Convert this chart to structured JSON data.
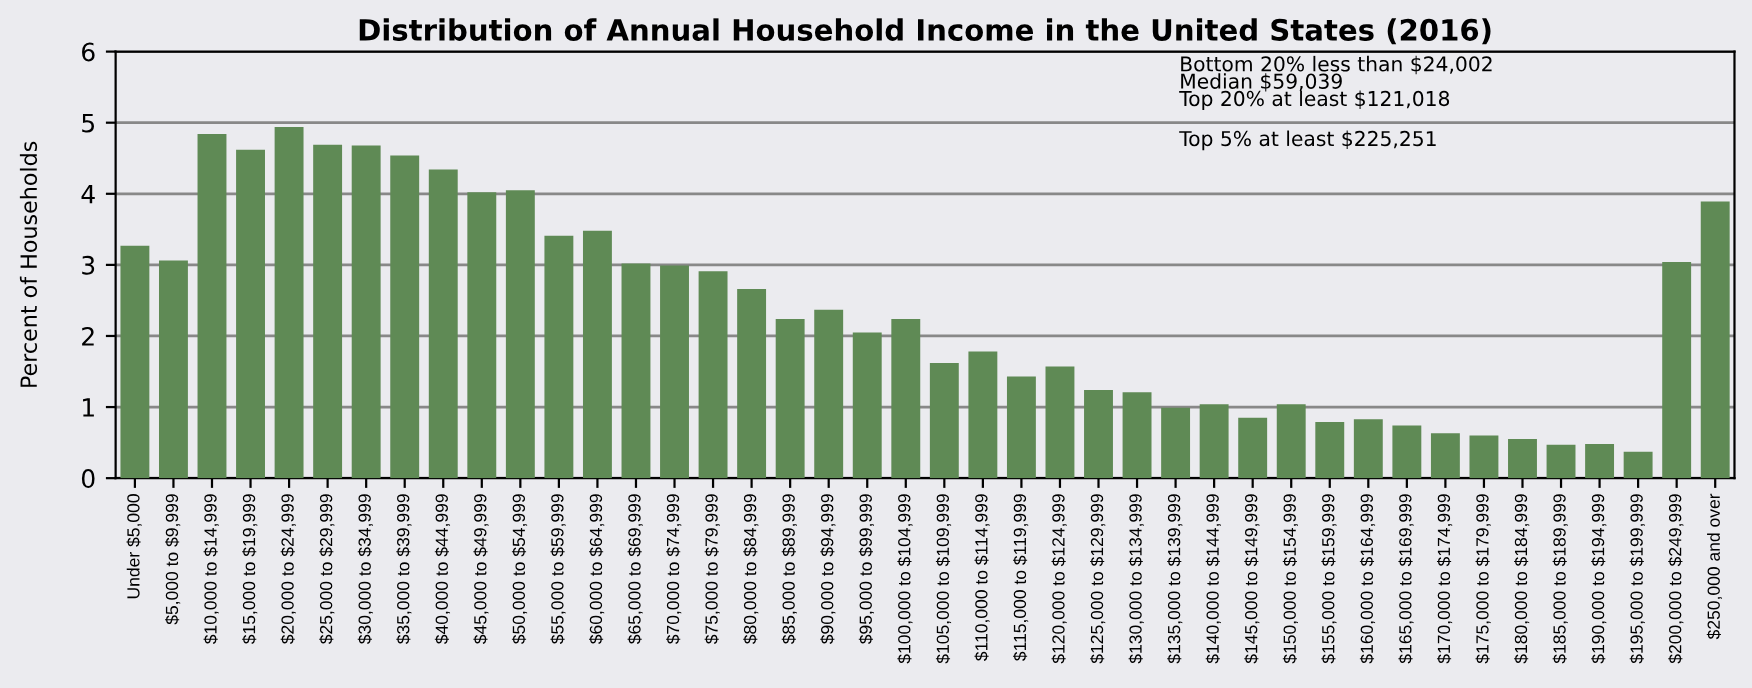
{
  "chart_data": {
    "type": "bar",
    "title": "Distribution of Annual Household Income in the United States (2016)",
    "ylabel": "Percent of Households",
    "categories": [
      "Under $5,000",
      "$5,000 to $9,999",
      "$10,000 to $14,999",
      "$15,000 to $19,999",
      "$20,000 to $24,999",
      "$25,000 to $29,999",
      "$30,000 to $34,999",
      "$35,000 to $39,999",
      "$40,000 to $44,999",
      "$45,000 to $49,999",
      "$50,000 to $54,999",
      "$55,000 to $59,999",
      "$60,000 to $64,999",
      "$65,000 to $69,999",
      "$70,000 to $74,999",
      "$75,000 to $79,999",
      "$80,000 to $84,999",
      "$85,000 to $89,999",
      "$90,000 to $94,999",
      "$95,000 to $99,999",
      "$100,000 to $104,999",
      "$105,000 to $109,999",
      "$110,000 to $114,999",
      "$115,000 to $119,999",
      "$120,000 to $124,999",
      "$125,000 to $129,999",
      "$130,000 to $134,999",
      "$135,000 to $139,999",
      "$140,000 to $144,999",
      "$145,000 to $149,999",
      "$150,000 to $154,999",
      "$155,000 to $159,999",
      "$160,000 to $164,999",
      "$165,000 to $169,999",
      "$170,000 to $174,999",
      "$175,000 to $179,999",
      "$180,000 to $184,999",
      "$185,000 to $189,999",
      "$190,000 to $194,999",
      "$195,000 to $199,999",
      "$200,000 to $249,999",
      "$250,000 and over"
    ],
    "values": [
      3.27,
      3.06,
      4.84,
      4.62,
      4.94,
      4.69,
      4.68,
      4.54,
      4.34,
      4.02,
      4.05,
      3.41,
      3.48,
      3.02,
      2.99,
      2.91,
      2.66,
      2.24,
      2.37,
      2.05,
      2.24,
      1.62,
      1.78,
      1.43,
      1.57,
      1.24,
      1.21,
      0.99,
      1.04,
      0.85,
      1.04,
      0.79,
      0.83,
      0.74,
      0.63,
      0.6,
      0.55,
      0.47,
      0.48,
      0.37,
      3.04,
      3.89
    ],
    "color": "#5f8a55",
    "ylim": [
      0,
      6
    ],
    "yticks": [
      0,
      1,
      2,
      3,
      4,
      5,
      6
    ],
    "grid": "y",
    "annotations": [
      "Bottom 20% less than $24,002\nMedian $59,039\nTop 20% at least $121,018",
      "Top 5% at least $225,251"
    ]
  }
}
